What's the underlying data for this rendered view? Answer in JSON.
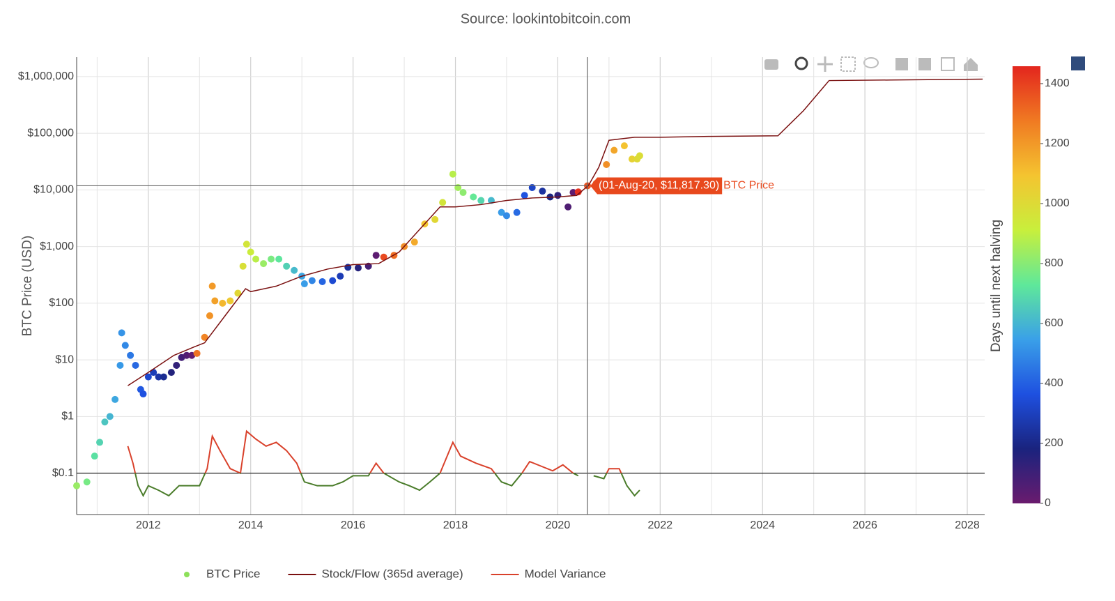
{
  "chart_data": {
    "type": "scatter",
    "title": "Source: lookintobitcoin.com",
    "y_label": "BTC Price (USD)",
    "log_y": true,
    "grid": true,
    "xlim": [
      2010.6,
      2028.34
    ],
    "xticks": [
      2012,
      2014,
      2016,
      2018,
      2020,
      2022,
      2024,
      2026,
      2028
    ],
    "xgrid_minor": [
      2011,
      2013,
      2015,
      2017,
      2019,
      2021,
      2023,
      2025,
      2027
    ],
    "ylim": [
      0.0186,
      2200000
    ],
    "yticks": [
      {
        "value": 0.1,
        "label": "$0.1"
      },
      {
        "value": 1,
        "label": "$1"
      },
      {
        "value": 10,
        "label": "$10"
      },
      {
        "value": 100,
        "label": "$100"
      },
      {
        "value": 1000,
        "label": "$1,000"
      },
      {
        "value": 10000,
        "label": "$10,000"
      },
      {
        "value": 100000,
        "label": "$100,000"
      },
      {
        "value": 1000000,
        "label": "$1,000,000"
      }
    ],
    "reference_line": 0.1,
    "series": [
      {
        "name": "BTC Price",
        "type": "scatter",
        "legend_color": "#8de05a",
        "x": [
          2010.6,
          2010.8,
          2010.95,
          2011.05,
          2011.15,
          2011.25,
          2011.35,
          2011.45,
          2011.48,
          2011.55,
          2011.65,
          2011.75,
          2011.85,
          2011.9,
          2012.0,
          2012.1,
          2012.2,
          2012.3,
          2012.45,
          2012.55,
          2012.65,
          2012.75,
          2012.85,
          2012.95,
          2013.1,
          2013.2,
          2013.25,
          2013.3,
          2013.45,
          2013.6,
          2013.75,
          2013.85,
          2013.92,
          2014.0,
          2014.1,
          2014.25,
          2014.4,
          2014.55,
          2014.7,
          2014.85,
          2015.0,
          2015.05,
          2015.2,
          2015.4,
          2015.6,
          2015.75,
          2015.9,
          2016.1,
          2016.3,
          2016.45,
          2016.6,
          2016.8,
          2017.0,
          2017.2,
          2017.4,
          2017.6,
          2017.75,
          2017.95,
          2018.05,
          2018.15,
          2018.35,
          2018.5,
          2018.7,
          2018.9,
          2019.0,
          2019.2,
          2019.35,
          2019.5,
          2019.7,
          2019.85,
          2020.0,
          2020.2,
          2020.3,
          2020.4,
          2020.58,
          2020.75,
          2020.95,
          2021.1,
          2021.3,
          2021.45,
          2021.55,
          2021.6
        ],
        "values": [
          0.06,
          0.07,
          0.2,
          0.35,
          0.8,
          1,
          2,
          8,
          30,
          18,
          12,
          8,
          3,
          2.5,
          5,
          6,
          5,
          5,
          6,
          8,
          11,
          12,
          12,
          13,
          25,
          60,
          200,
          110,
          100,
          110,
          150,
          450,
          1100,
          800,
          600,
          500,
          600,
          600,
          450,
          380,
          300,
          220,
          250,
          240,
          250,
          300,
          430,
          420,
          450,
          700,
          650,
          700,
          1000,
          1200,
          2500,
          3000,
          6000,
          19000,
          11000,
          9000,
          7500,
          6500,
          6500,
          4000,
          3500,
          4000,
          8000,
          11000,
          9500,
          7500,
          8000,
          5000,
          9000,
          9200,
          11817.3,
          13000,
          28000,
          50000,
          60000,
          35000,
          35000,
          40000
        ],
        "color_values": [
          830,
          770,
          710,
          675,
          640,
          600,
          565,
          530,
          520,
          495,
          456,
          420,
          383,
          365,
          330,
          290,
          255,
          220,
          165,
          128,
          90,
          55,
          18,
          1290,
          1252,
          1215,
          1197,
          1179,
          1124,
          1069,
          1015,
          978,
          952,
          923,
          887,
          832,
          777,
          723,
          668,
          613,
          558,
          540,
          485,
          413,
          339,
          285,
          230,
          157,
          84,
          29,
          1380,
          1303,
          1230,
          1157,
          1084,
          1011,
          956,
          883,
          847,
          810,
          737,
          683,
          610,
          537,
          500,
          427,
          372,
          318,
          245,
          190,
          135,
          62,
          26,
          1435,
          1358,
          1296,
          1223,
          1168,
          1095,
          1040,
          1004,
          986
        ]
      },
      {
        "name": "Stock/Flow (365d average)",
        "type": "line",
        "color": "#7a1010",
        "x": [
          2011.6,
          2012.0,
          2012.5,
          2012.9,
          2013.1,
          2013.5,
          2013.9,
          2014.0,
          2014.5,
          2015.0,
          2015.5,
          2016.0,
          2016.5,
          2016.9,
          2017.3,
          2017.7,
          2018.0,
          2018.5,
          2019.0,
          2019.5,
          2020.0,
          2020.37,
          2020.6,
          2020.8,
          2021.0,
          2021.5,
          2022.0,
          2023.0,
          2024.3,
          2024.8,
          2025.3,
          2026.5,
          2028.3
        ],
        "values": [
          3.5,
          6,
          12,
          17,
          20,
          60,
          180,
          160,
          200,
          300,
          400,
          480,
          500,
          800,
          2000,
          5000,
          5000,
          5500,
          6500,
          7200,
          7500,
          8000,
          12000,
          25000,
          75000,
          85000,
          85000,
          88000,
          90000,
          250000,
          850000,
          870000,
          900000
        ]
      },
      {
        "name": "Model Variance",
        "type": "line",
        "color": "#d9412b",
        "below_color": "#4a7c2a",
        "x": [
          2011.6,
          2011.7,
          2011.8,
          2011.9,
          2012.0,
          2012.2,
          2012.4,
          2012.6,
          2012.8,
          2013.0,
          2013.15,
          2013.25,
          2013.4,
          2013.6,
          2013.8,
          2013.92,
          2014.1,
          2014.3,
          2014.5,
          2014.7,
          2014.9,
          2015.05,
          2015.3,
          2015.6,
          2015.8,
          2016.0,
          2016.3,
          2016.45,
          2016.6,
          2016.9,
          2017.1,
          2017.3,
          2017.5,
          2017.7,
          2017.95,
          2018.1,
          2018.4,
          2018.7,
          2018.9,
          2019.1,
          2019.3,
          2019.45,
          2019.7,
          2019.9,
          2020.1,
          2020.3,
          2020.4,
          2020.6,
          2020.7,
          2020.9,
          2021.0,
          2021.2,
          2021.35,
          2021.5,
          2021.6
        ],
        "values": [
          0.3,
          0.15,
          0.06,
          0.04,
          0.06,
          0.05,
          0.04,
          0.06,
          0.06,
          0.06,
          0.12,
          0.45,
          0.25,
          0.12,
          0.1,
          0.55,
          0.4,
          0.3,
          0.35,
          0.25,
          0.15,
          0.07,
          0.06,
          0.06,
          0.07,
          0.09,
          0.09,
          0.15,
          0.1,
          0.07,
          0.06,
          0.05,
          0.07,
          0.1,
          0.35,
          0.2,
          0.15,
          0.12,
          0.07,
          0.06,
          0.1,
          0.16,
          0.13,
          0.11,
          0.14,
          0.1,
          0.09,
          null,
          0.09,
          0.08,
          0.12,
          0.12,
          0.06,
          0.04,
          0.05
        ]
      }
    ],
    "colorbar": {
      "title": "Days until next halving",
      "range": [
        0,
        1458
      ],
      "ticks": [
        0,
        200,
        400,
        600,
        800,
        1000,
        1200,
        1400
      ],
      "colorscale": [
        "#6a1b6e",
        "#1a237e",
        "#1e50e0",
        "#3aa0e8",
        "#5fe89a",
        "#c8ef3c",
        "#f4c430",
        "#f07a22",
        "#e3261e"
      ]
    },
    "hover": {
      "x": 2020.58,
      "y": 11817.3,
      "label": "(01-Aug-20, $11,817.30)",
      "series_index": 0,
      "color": "#e8491d"
    }
  }
}
